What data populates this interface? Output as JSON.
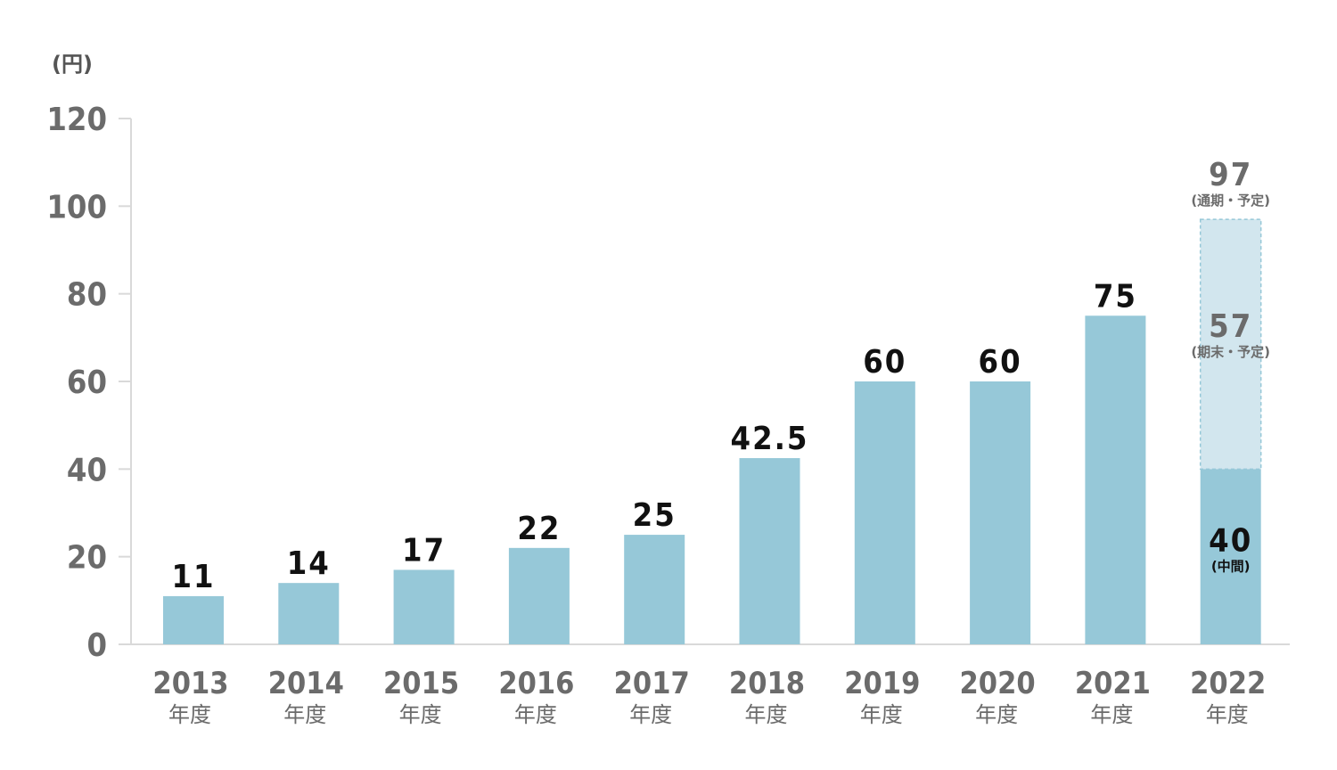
{
  "chart_data": {
    "type": "bar",
    "unit": "(円)",
    "ylim": [
      0,
      120
    ],
    "yticks": [
      0,
      20,
      40,
      60,
      80,
      100,
      120
    ],
    "year_suffix": "年度",
    "categories": [
      "2013",
      "2014",
      "2015",
      "2016",
      "2017",
      "2018",
      "2019",
      "2020",
      "2021",
      "2022"
    ],
    "values": [
      11,
      14,
      17,
      22,
      25,
      42.5,
      60,
      60,
      75,
      40
    ],
    "value_labels": [
      "11",
      "14",
      "17",
      "22",
      "25",
      "42.5",
      "60",
      "60",
      "75",
      "40"
    ],
    "bar_color": "#96c8d8",
    "forecast": {
      "category": "2022",
      "interim_value": 40,
      "interim_note": "(中間)",
      "period_end_value": 57,
      "period_end_label": "57",
      "period_end_note": "(期末・予定)",
      "full_year_value": 97,
      "full_year_label": "97",
      "full_year_note": "(通期・予定)",
      "forecast_color": "#d2e6ee",
      "forecast_border_color": "#96c8d8"
    },
    "axis_color": "#d9d9d9"
  }
}
